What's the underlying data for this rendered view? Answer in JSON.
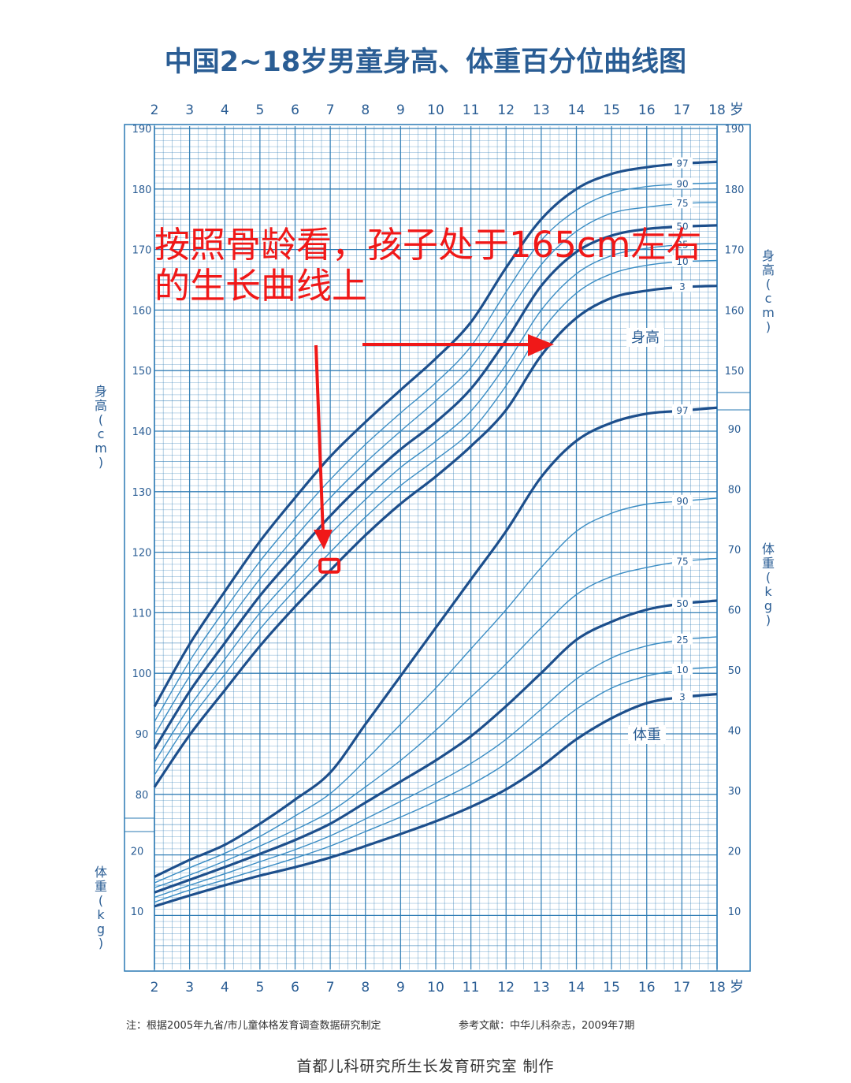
{
  "title": "中国2~18岁男童身高、体重百分位曲线图",
  "note_left": "注：根据2005年九省/市儿童体格发育调查数据研究制定",
  "note_right": "参考文献：中华儿科杂志，2009年7期",
  "footer": "首都儿科研究所生长发育研究室  制作",
  "annotation": {
    "line1": "按照骨龄看，孩子处于165cm左右",
    "line2": "的生长曲线上",
    "color": "#f01818"
  },
  "colors": {
    "grid": "#2a79b3",
    "curve_major": "#1d4f8c",
    "curve_minor": "#3b8dc4",
    "text": "#2a5d94"
  },
  "chart_data": {
    "type": "line",
    "x_unit_label": "岁",
    "x_ticks": [
      2,
      3,
      4,
      5,
      6,
      7,
      8,
      9,
      10,
      11,
      12,
      13,
      14,
      15,
      16,
      17,
      18
    ],
    "height_panel": {
      "axis_label_chars": [
        "身",
        "高",
        "(",
        "c",
        "m",
        ")"
      ],
      "section_label": "身高",
      "y_range_cm": [
        80,
        190
      ],
      "y_ticks": [
        80,
        90,
        100,
        110,
        120,
        130,
        140,
        150,
        160,
        170,
        180,
        190
      ],
      "x": [
        2,
        3,
        4,
        5,
        6,
        7,
        8,
        9,
        10,
        11,
        12,
        13,
        14,
        15,
        16,
        17,
        18
      ],
      "series": [
        {
          "name": "97",
          "major": true,
          "values": [
            94.5,
            104.8,
            113.5,
            121.8,
            129,
            135.8,
            141.5,
            146.8,
            152,
            158,
            167,
            175,
            180,
            182.5,
            183.6,
            184.2,
            184.5
          ]
        },
        {
          "name": "90",
          "major": false,
          "values": [
            92,
            102,
            110.5,
            118.5,
            125.5,
            132,
            137.8,
            143,
            148,
            154,
            163,
            171.5,
            176.5,
            179.3,
            180.4,
            180.8,
            181
          ]
        },
        {
          "name": "75",
          "major": false,
          "values": [
            89.8,
            99.5,
            107.8,
            115.6,
            122.5,
            129,
            134.8,
            140,
            145,
            150.5,
            159,
            167.5,
            173,
            176,
            177,
            177.6,
            177.8
          ]
        },
        {
          "name": "50",
          "major": true,
          "values": [
            87.5,
            97,
            105,
            112.8,
            119.5,
            126,
            131.8,
            137,
            141.5,
            147,
            155,
            164,
            169.6,
            172.3,
            173.4,
            173.8,
            174
          ]
        },
        {
          "name": "25",
          "major": false,
          "values": [
            85.3,
            94.5,
            102.3,
            110,
            116.5,
            123,
            128.7,
            134,
            138.3,
            143.3,
            151,
            160,
            166,
            169,
            170.2,
            170.8,
            171
          ]
        },
        {
          "name": "10",
          "major": false,
          "values": [
            83.2,
            92.2,
            99.8,
            107.3,
            113.8,
            120,
            125.8,
            131,
            135.3,
            140,
            147.5,
            156.5,
            162.8,
            166,
            167.4,
            168,
            168.2
          ]
        },
        {
          "name": "3",
          "major": true,
          "values": [
            81.2,
            89.8,
            97.2,
            104.5,
            111,
            117,
            122.8,
            128,
            132.5,
            137.5,
            143.5,
            152.5,
            158.7,
            162,
            163.2,
            163.8,
            164
          ]
        }
      ]
    },
    "weight_panel": {
      "axis_label_chars": [
        "体",
        "重",
        "(",
        "k",
        "g",
        ")"
      ],
      "section_label": "体重",
      "y_range_kg": [
        5,
        95
      ],
      "y_ticks_left": [
        10,
        20
      ],
      "y_ticks_right": [
        10,
        20,
        30,
        40,
        50,
        60,
        70,
        80,
        90
      ],
      "x": [
        2,
        3,
        4,
        5,
        6,
        7,
        8,
        9,
        10,
        11,
        12,
        13,
        14,
        15,
        16,
        17,
        18
      ],
      "series": [
        {
          "name": "97",
          "major": true,
          "values": [
            15.7,
            18.5,
            21,
            24.5,
            28.5,
            33,
            41,
            49,
            57,
            65,
            73,
            82,
            88,
            91,
            92.5,
            93,
            93.5
          ]
        },
        {
          "name": "90",
          "major": false,
          "values": [
            14.7,
            17.2,
            19.6,
            22.4,
            25.8,
            29.5,
            35,
            41,
            47,
            53.5,
            60,
            67,
            73,
            76,
            77.5,
            78,
            78.5
          ]
        },
        {
          "name": "75",
          "major": false,
          "values": [
            13.9,
            16,
            18.3,
            20.8,
            23.5,
            26.5,
            30.6,
            35,
            40,
            45.5,
            51,
            57,
            62.5,
            65.5,
            67,
            68,
            68.5
          ]
        },
        {
          "name": "50",
          "major": true,
          "values": [
            13.1,
            15.2,
            17.3,
            19.5,
            21.8,
            24.5,
            28,
            31.5,
            35,
            39,
            44,
            49.5,
            55,
            58,
            60,
            61,
            61.5
          ]
        },
        {
          "name": "25",
          "major": false,
          "values": [
            12.3,
            14.3,
            16.2,
            18.2,
            20.2,
            22.5,
            25.3,
            28.2,
            31.2,
            34.5,
            38.5,
            43.5,
            48.5,
            52,
            54,
            55,
            55.5
          ]
        },
        {
          "name": "10",
          "major": false,
          "values": [
            11.5,
            13.5,
            15.2,
            17,
            18.8,
            20.8,
            23.2,
            25.6,
            28.2,
            31,
            34.5,
            39,
            43.5,
            47,
            49,
            50,
            50.5
          ]
        },
        {
          "name": "3",
          "major": true,
          "values": [
            10.8,
            12.6,
            14.3,
            15.9,
            17.3,
            18.9,
            20.8,
            22.8,
            24.9,
            27.3,
            30.2,
            34,
            38.5,
            42,
            44.5,
            45.5,
            46
          ]
        }
      ]
    },
    "annotation_marker": {
      "age": 7,
      "height_cm": 117.5
    }
  }
}
